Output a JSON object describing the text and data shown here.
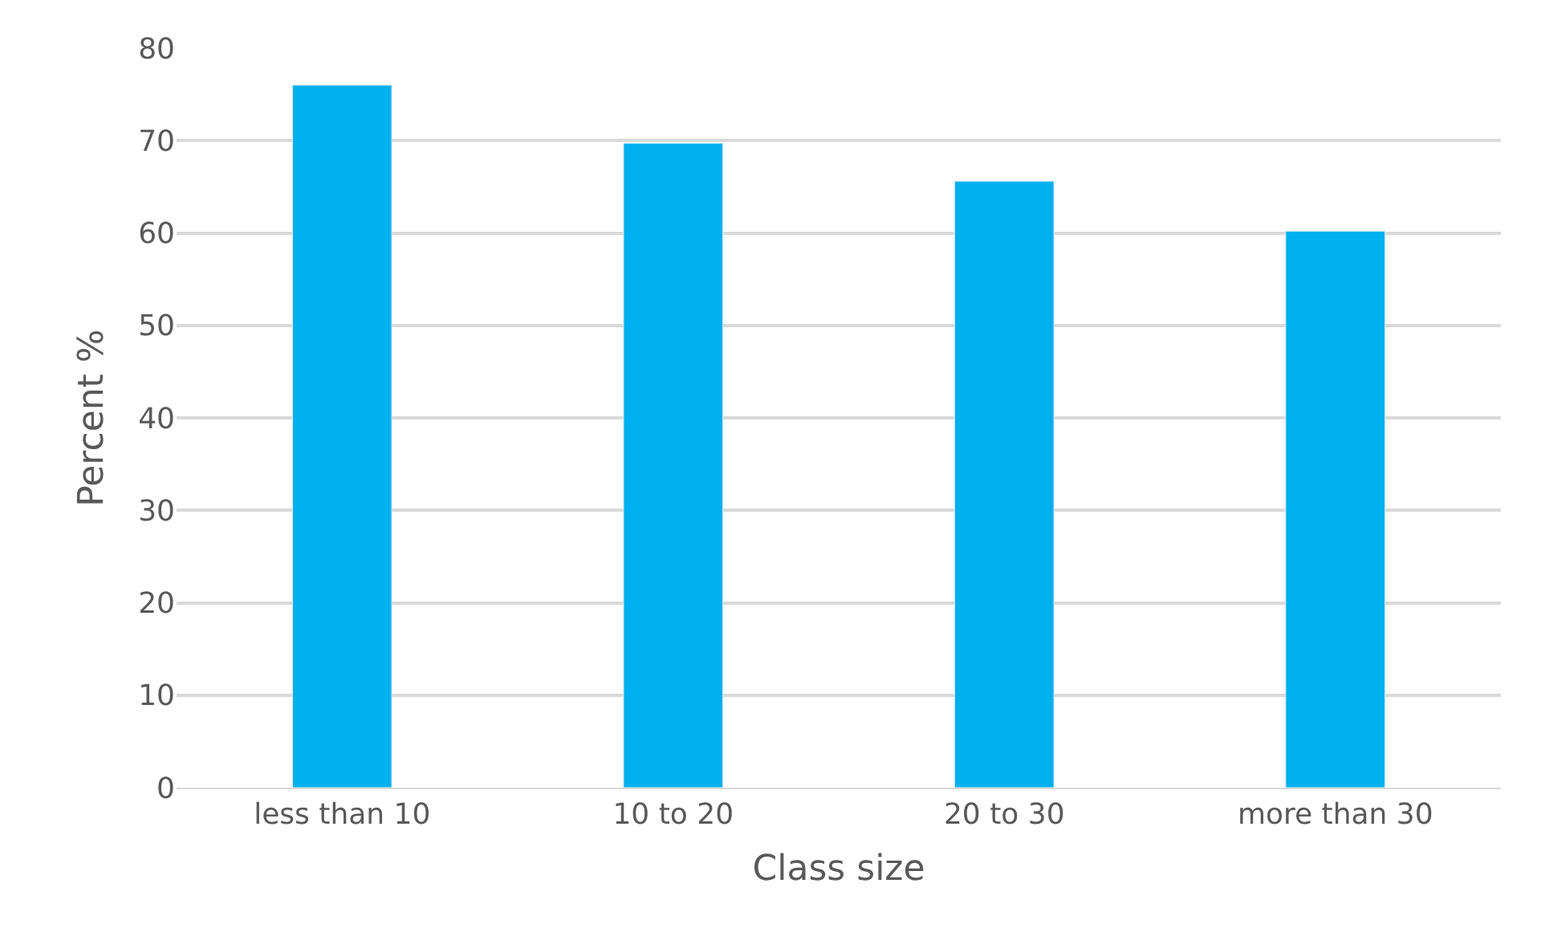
{
  "chart_data": {
    "type": "bar",
    "xlabel": "Class size",
    "ylabel": "Percent %",
    "categories": [
      "less than 10",
      "10 to 20",
      "20 to 30",
      "more than 30"
    ],
    "values": [
      76,
      69.7,
      65.6,
      60.2
    ],
    "color": "#00b0f0",
    "ylim": [
      0,
      80
    ],
    "yticks": [
      0,
      10,
      20,
      30,
      40,
      50,
      60,
      70,
      80
    ],
    "grid": "y",
    "legend": false
  }
}
